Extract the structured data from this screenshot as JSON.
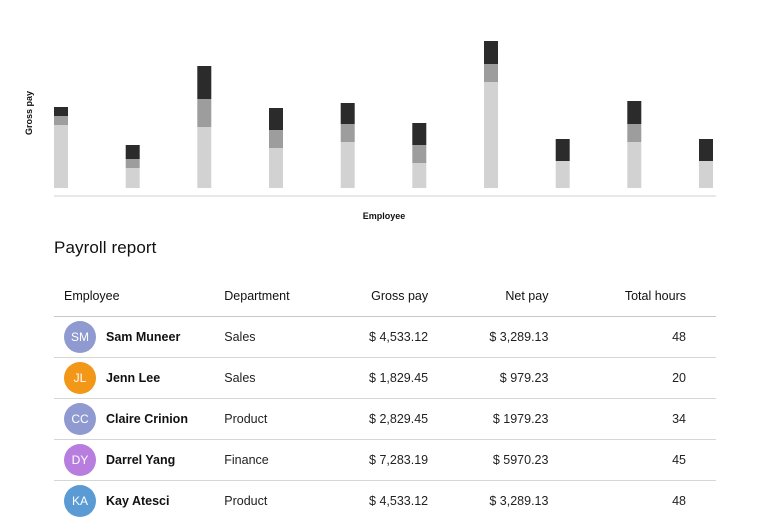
{
  "chart_data": {
    "type": "bar",
    "stacked": true,
    "xlabel": "Employee",
    "ylabel": "Gross pay",
    "grid": false,
    "categories": [
      "",
      "",
      "",
      "",
      "",
      "",
      "",
      "",
      "",
      ""
    ],
    "series": [
      {
        "color": "#d2d2d2",
        "values": [
          63,
          20,
          61,
          40,
          46,
          25,
          106,
          27,
          46,
          27
        ]
      },
      {
        "color": "#9d9d9d",
        "values": [
          9,
          9,
          28,
          18,
          18,
          18,
          18,
          0,
          18,
          0
        ]
      },
      {
        "color": "#2b2b2b",
        "values": [
          9,
          14,
          33,
          22,
          21,
          22,
          23,
          22,
          23,
          22
        ]
      }
    ]
  },
  "report": {
    "title": "Payroll report",
    "columns": {
      "employee": "Employee",
      "department": "Department",
      "gross": "Gross pay",
      "net": "Net pay",
      "hours": "Total hours"
    },
    "rows": [
      {
        "initials": "SM",
        "name": "Sam Muneer",
        "department": "Sales",
        "gross": "$ 4,533.12",
        "net": "$ 3,289.13",
        "hours": "48",
        "avatar_color": "#8f9bd0"
      },
      {
        "initials": "JL",
        "name": "Jenn Lee",
        "department": "Sales",
        "gross": "$ 1,829.45",
        "net": "$ 979.23",
        "hours": "20",
        "avatar_color": "#f29718"
      },
      {
        "initials": "CC",
        "name": "Claire Crinion",
        "department": "Product",
        "gross": "$ 2,829.45",
        "net": "$ 1979.23",
        "hours": "34",
        "avatar_color": "#8f9bd0"
      },
      {
        "initials": "DY",
        "name": "Darrel Yang",
        "department": "Finance",
        "gross": "$ 7,283.19",
        "net": "$ 5970.23",
        "hours": "45",
        "avatar_color": "#b77ee0"
      },
      {
        "initials": "KA",
        "name": "Kay Atesci",
        "department": "Product",
        "gross": "$ 4,533.12",
        "net": "$ 3,289.13",
        "hours": "48",
        "avatar_color": "#5b9bd5"
      }
    ]
  }
}
